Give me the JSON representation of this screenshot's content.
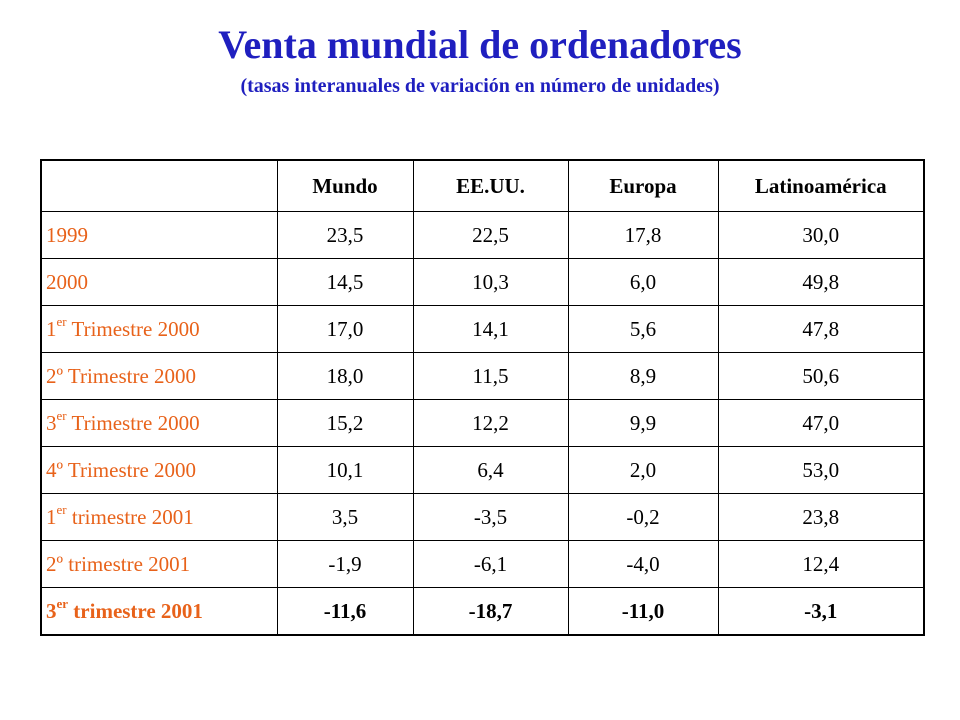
{
  "header": {
    "title": "Venta mundial de ordenadores",
    "subtitle": "(tasas interanuales de variación en número de unidades)"
  },
  "colors": {
    "title": "#1f1fbf",
    "row_label": "#e8621a"
  },
  "table": {
    "columns": [
      "",
      "Mundo",
      "EE.UU.",
      "Europa",
      "Latinoamérica"
    ],
    "rows": [
      {
        "label": "1999",
        "sup": "",
        "rest": "",
        "values": [
          "23,5",
          "22,5",
          "17,8",
          "30,0"
        ]
      },
      {
        "label": "2000",
        "sup": "",
        "rest": "",
        "values": [
          "14,5",
          "10,3",
          "6,0",
          "49,8"
        ]
      },
      {
        "label": "1",
        "sup": "er",
        "rest": " Trimestre 2000",
        "values": [
          "17,0",
          "14,1",
          "5,6",
          "47,8"
        ]
      },
      {
        "label": "2º Trimestre 2000",
        "sup": "",
        "rest": "",
        "values": [
          "18,0",
          "11,5",
          "8,9",
          "50,6"
        ]
      },
      {
        "label": "3",
        "sup": "er",
        "rest": " Trimestre 2000",
        "values": [
          "15,2",
          "12,2",
          "9,9",
          "47,0"
        ]
      },
      {
        "label": "4º Trimestre 2000",
        "sup": "",
        "rest": "",
        "values": [
          "10,1",
          "6,4",
          "2,0",
          "53,0"
        ]
      },
      {
        "label": "1",
        "sup": "er",
        "rest": " trimestre 2001",
        "values": [
          "3,5",
          "-3,5",
          "-0,2",
          "23,8"
        ]
      },
      {
        "label": "2º trimestre 2001",
        "sup": "",
        "rest": "",
        "values": [
          "-1,9",
          "-6,1",
          "-4,0",
          "12,4"
        ]
      },
      {
        "label": "3",
        "sup": "er",
        "rest": " trimestre 2001",
        "values": [
          "-11,6",
          "-18,7",
          "-11,0",
          "-3,1"
        ],
        "bold": true
      }
    ]
  }
}
